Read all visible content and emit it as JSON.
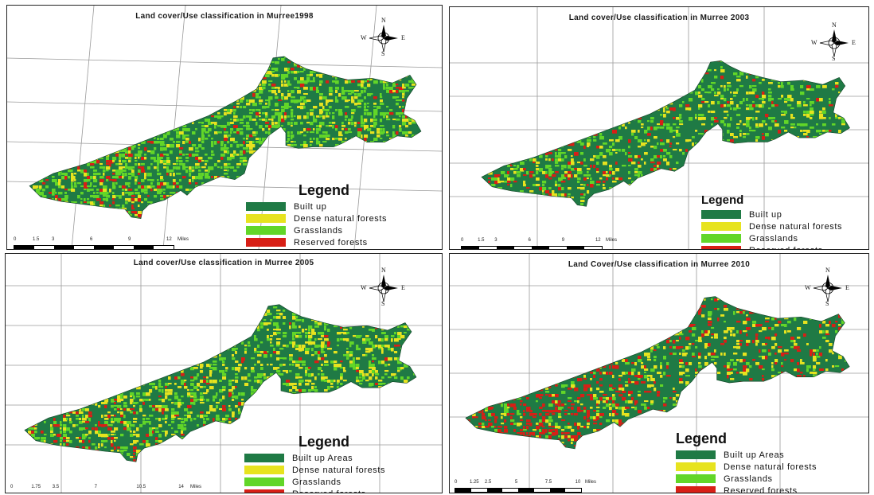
{
  "colors": {
    "built_up": "#1f7a45",
    "dense_natural_forests": "#e7e31f",
    "grasslands": "#62d628",
    "reserved_forests": "#d81f16"
  },
  "compass": {
    "north": "N",
    "south": "S",
    "east": "E",
    "west": "W",
    "icon": "north-arrow-compass-rose"
  },
  "maps": [
    {
      "title": "Land cover/Use classification in Murree1998",
      "legend_title": "Legend",
      "legend": [
        "Built up",
        "Dense natural forests",
        "Grasslands",
        "Reserved forests"
      ],
      "scale_labels": [
        "0",
        "1.5",
        "3",
        "6",
        "9",
        "12"
      ],
      "scale_unit": "Miles"
    },
    {
      "title": "Land cover/Use classification in Murree 2003",
      "legend_title": "Legend",
      "legend": [
        "Built up",
        "Dense natural forests",
        "Grasslands",
        "Reserved forests"
      ],
      "scale_labels": [
        "0",
        "1.5",
        "3",
        "6",
        "9",
        "12"
      ],
      "scale_unit": "Miles"
    },
    {
      "title": "Land cover/Use classification in Murree 2005",
      "legend_title": "Legend",
      "legend": [
        "Built up Areas",
        "Dense natural forests",
        "Grasslands",
        "Reserved forests"
      ],
      "scale_labels": [
        "0",
        "1.75",
        "3.5",
        "7",
        "10.5",
        "14"
      ],
      "scale_unit": "Miles"
    },
    {
      "title": "Land Cover/Use classification in Murree 2010",
      "legend_title": "Legend",
      "legend": [
        "Built up Areas",
        "Dense natural forests",
        "Grasslands",
        "Reserved forests"
      ],
      "scale_labels": [
        "0",
        "1.25",
        "2.5",
        "5",
        "7.5",
        "10"
      ],
      "scale_unit": "Miles"
    }
  ]
}
